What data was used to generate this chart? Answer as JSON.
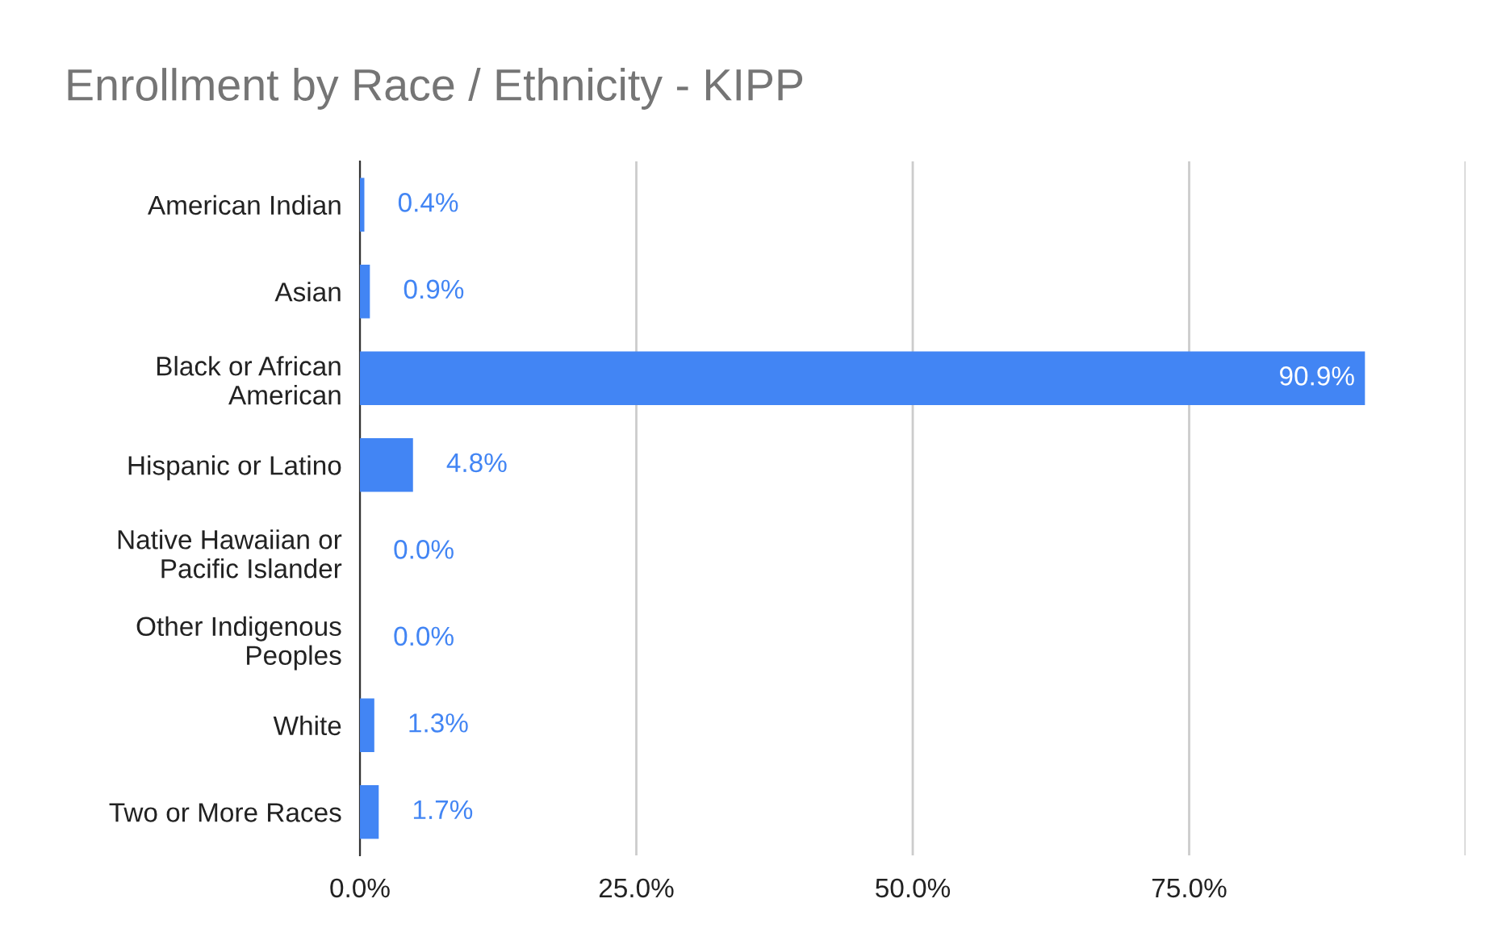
{
  "chart_data": {
    "type": "bar",
    "orientation": "horizontal",
    "title": "Enrollment by Race / Ethnicity - KIPP",
    "categories": [
      "American Indian",
      "Asian",
      "Black or African\nAmerican",
      "Hispanic or Latino",
      "Native Hawaiian or\nPacific Islander",
      "Other Indigenous\nPeoples",
      "White",
      "Two or More Races"
    ],
    "values": [
      0.4,
      0.9,
      90.9,
      4.8,
      0.0,
      0.0,
      1.3,
      1.7
    ],
    "value_labels": [
      "0.4%",
      "0.9%",
      "90.9%",
      "4.8%",
      "0.0%",
      "0.0%",
      "1.3%",
      "1.7%"
    ],
    "color": "#4285f4",
    "xlim": [
      0,
      100
    ],
    "xticks": [
      {
        "value": 0,
        "label": "0.0%"
      },
      {
        "value": 25,
        "label": "25.0%"
      },
      {
        "value": 50,
        "label": "50.0%"
      },
      {
        "value": 75,
        "label": "75.0%"
      },
      {
        "value": 100,
        "label": null
      }
    ],
    "grid": "x",
    "legend": false
  }
}
